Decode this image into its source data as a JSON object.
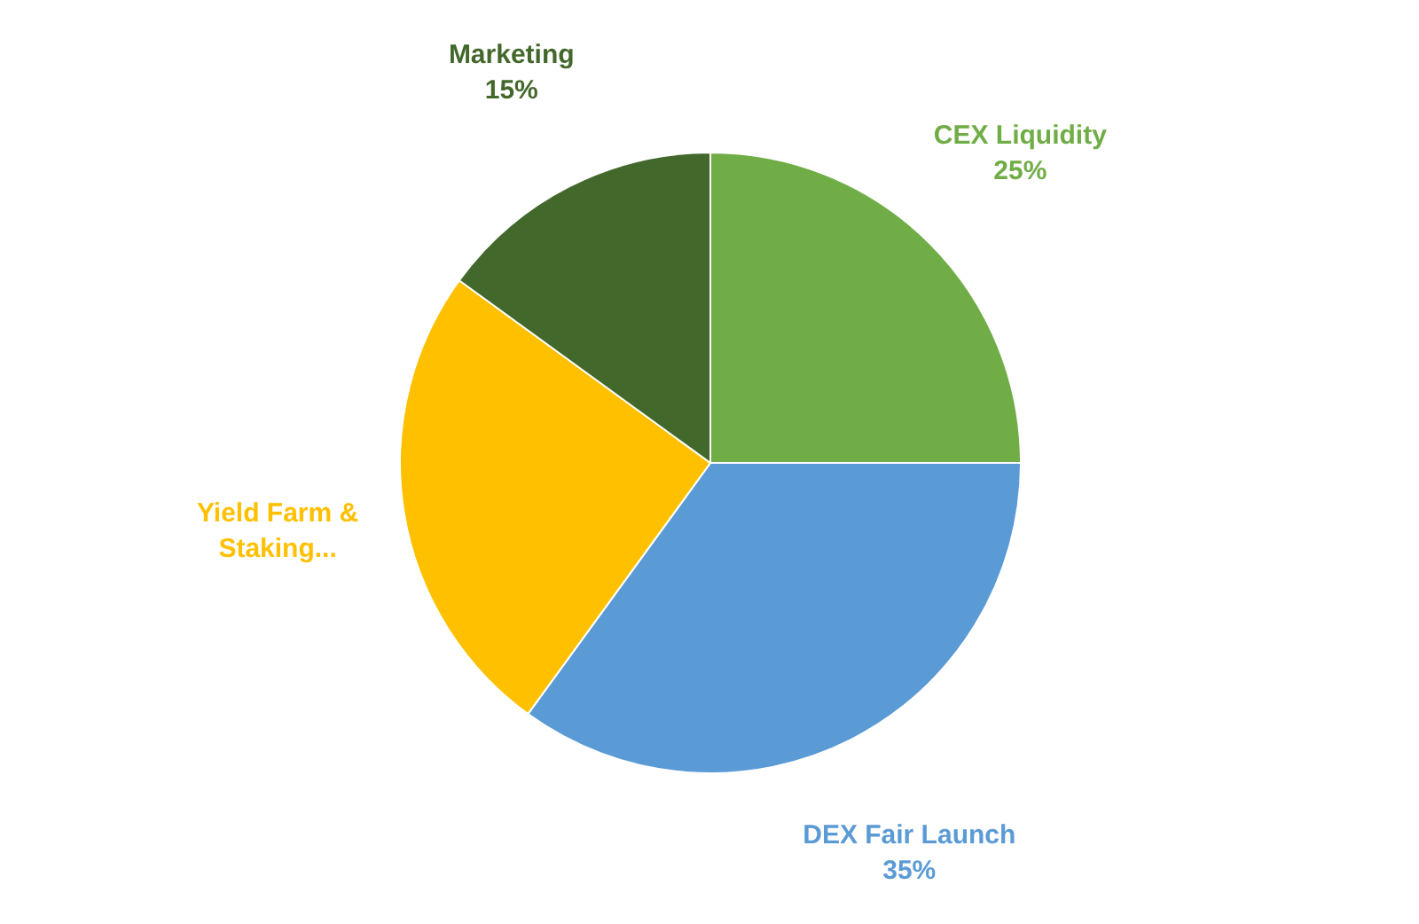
{
  "chart_data": {
    "type": "pie",
    "categories": [
      "CEX Liquidity",
      "DEX Fair Launch",
      "Yield Farm & Staking...",
      "Marketing"
    ],
    "values": [
      25,
      35,
      25,
      15
    ],
    "colors": [
      "#70ad47",
      "#5b9bd5",
      "#ffc000",
      "#43682b"
    ],
    "value_labels": [
      "25%",
      "35%",
      null,
      "15%"
    ]
  }
}
